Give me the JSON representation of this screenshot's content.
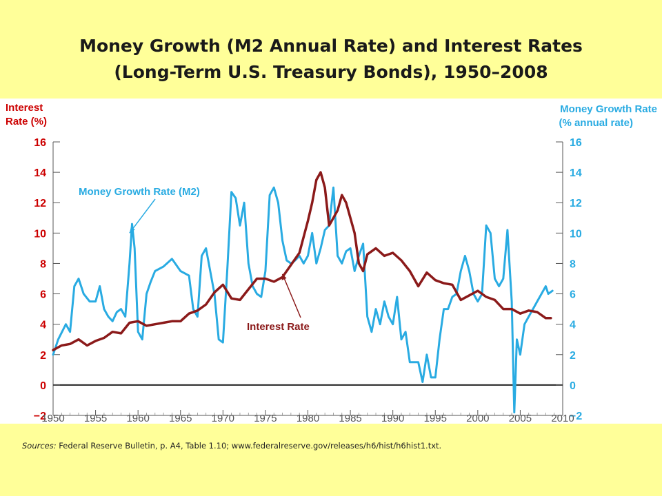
{
  "slide": {
    "title_line1": "Money Growth (M2 Annual Rate) and Interest Rates",
    "title_line2": "(Long-Term U.S. Treasury Bonds), 1950–2008",
    "sources_label": "Sources:",
    "sources_text": " Federal Reserve Bulletin, p. A4, Table 1.10; www.federalreserve.gov/releases/h6/hist/h6hist1.txt."
  },
  "colors": {
    "background": "#FFFF99",
    "plot_background": "#FFFFFF",
    "money_growth": "#29ABE2",
    "interest_rate": "#8B1A1A",
    "left_axis_text": "#CC0000",
    "right_axis_text": "#29ABE2"
  },
  "chart_data": {
    "type": "line",
    "title": "",
    "left_axis_label_line1": "Interest",
    "left_axis_label_line2": "Rate (%)",
    "right_axis_label_line1": "Money Growth Rate",
    "right_axis_label_line2": "(% annual rate)",
    "xlim": [
      1950,
      2010
    ],
    "ylim": [
      -2,
      16
    ],
    "x_ticks": [
      1950,
      1955,
      1960,
      1965,
      1970,
      1975,
      1980,
      1985,
      1990,
      1995,
      2000,
      2005,
      2010
    ],
    "y_ticks": [
      -2,
      0,
      2,
      4,
      6,
      8,
      10,
      12,
      14,
      16
    ],
    "y_tick_labels": [
      "−2",
      "0",
      "2",
      "4",
      "6",
      "8",
      "10",
      "12",
      "14",
      "16"
    ],
    "zero_line": true,
    "grid": false,
    "annotations": [
      {
        "text": "Money Growth Rate (M2)",
        "series": "money_growth",
        "points_to": [
          1959,
          10
        ]
      },
      {
        "text": "Interest Rate",
        "series": "interest_rate",
        "points_to": [
          1977,
          7.3
        ]
      }
    ],
    "series": [
      {
        "key": "money_growth",
        "x": [
          1950,
          1950.6,
          1951.5,
          1952,
          1952.5,
          1953,
          1953.6,
          1954.3,
          1955,
          1955.5,
          1956,
          1956.5,
          1957,
          1957.5,
          1958,
          1958.5,
          1959,
          1959.3,
          1959.6,
          1960,
          1960.5,
          1961,
          1961.5,
          1962,
          1963,
          1964,
          1965,
          1966,
          1966.5,
          1967,
          1967.5,
          1968,
          1969,
          1969.5,
          1970,
          1970.5,
          1971,
          1971.5,
          1972,
          1972.5,
          1973,
          1973.5,
          1974,
          1974.5,
          1975,
          1975.5,
          1976,
          1976.5,
          1977,
          1977.5,
          1978,
          1978.5,
          1979,
          1979.5,
          1980,
          1980.5,
          1981,
          1981.5,
          1982,
          1982.5,
          1983,
          1983.5,
          1984,
          1984.5,
          1985,
          1985.5,
          1986,
          1986.5,
          1987,
          1987.5,
          1988,
          1988.5,
          1989,
          1989.5,
          1990,
          1990.5,
          1991,
          1991.5,
          1992,
          1992.5,
          1993,
          1993.5,
          1994,
          1994.5,
          1995,
          1995.5,
          1996,
          1996.5,
          1997,
          1997.5,
          1998,
          1998.5,
          1999,
          1999.5,
          2000,
          2000.5,
          2001,
          2001.5,
          2002,
          2002.5,
          2003,
          2003.5,
          2004,
          2004.3,
          2004.6,
          2005,
          2005.5,
          2006,
          2006.5,
          2007,
          2007.5,
          2008,
          2008.3,
          2008.8
        ],
        "values": [
          2.0,
          3.0,
          4.0,
          3.5,
          6.5,
          7.0,
          6.0,
          5.5,
          5.5,
          6.5,
          5.0,
          4.5,
          4.2,
          4.8,
          5.0,
          4.5,
          8.0,
          10.6,
          9.0,
          3.5,
          3.0,
          6.0,
          6.8,
          7.5,
          7.8,
          8.3,
          7.5,
          7.2,
          5.0,
          4.5,
          8.5,
          9.0,
          6.0,
          3.0,
          2.8,
          7.5,
          12.7,
          12.3,
          10.5,
          12.0,
          8.0,
          6.5,
          6.0,
          5.8,
          7.5,
          12.5,
          13.0,
          12.0,
          9.5,
          8.2,
          8.0,
          8.2,
          8.5,
          8.0,
          8.5,
          10.0,
          8.0,
          9.0,
          10.2,
          10.5,
          13.0,
          8.5,
          8.0,
          8.8,
          9.0,
          7.5,
          8.5,
          9.3,
          4.5,
          3.5,
          5.0,
          4.0,
          5.5,
          4.5,
          4.0,
          5.8,
          3.0,
          3.5,
          1.5,
          1.5,
          1.5,
          0.2,
          2.0,
          0.5,
          0.5,
          3.0,
          5.0,
          5.0,
          5.8,
          6.0,
          7.5,
          8.5,
          7.5,
          6.0,
          5.5,
          6.0,
          10.5,
          10.0,
          7.0,
          6.5,
          7.0,
          10.2,
          5.5,
          -1.8,
          3.0,
          2.0,
          4.0,
          4.5,
          5.0,
          5.5,
          6.0,
          6.5,
          6.0,
          6.2
        ]
      },
      {
        "key": "interest_rate",
        "x": [
          1950,
          1951,
          1952,
          1953,
          1954,
          1955,
          1956,
          1957,
          1958,
          1959,
          1960,
          1961,
          1962,
          1963,
          1964,
          1965,
          1966,
          1967,
          1968,
          1969,
          1970,
          1971,
          1972,
          1973,
          1974,
          1975,
          1976,
          1977,
          1978,
          1979,
          1980,
          1980.5,
          1981,
          1981.5,
          1982,
          1982.5,
          1983,
          1983.5,
          1984,
          1984.5,
          1985,
          1985.5,
          1986,
          1986.5,
          1987,
          1988,
          1989,
          1990,
          1991,
          1992,
          1993,
          1994,
          1995,
          1996,
          1997,
          1998,
          1999,
          2000,
          2001,
          2002,
          2003,
          2004,
          2005,
          2006,
          2007,
          2008,
          2008.6
        ],
        "values": [
          2.3,
          2.6,
          2.7,
          3.0,
          2.6,
          2.9,
          3.1,
          3.5,
          3.4,
          4.1,
          4.2,
          3.9,
          4.0,
          4.1,
          4.2,
          4.2,
          4.7,
          4.9,
          5.3,
          6.1,
          6.6,
          5.7,
          5.6,
          6.3,
          7.0,
          7.0,
          6.8,
          7.1,
          7.9,
          8.7,
          10.8,
          12.0,
          13.5,
          14.0,
          13.0,
          10.5,
          11.0,
          11.5,
          12.5,
          12.0,
          11.0,
          10.0,
          8.0,
          7.5,
          8.6,
          9.0,
          8.5,
          8.7,
          8.2,
          7.5,
          6.5,
          7.4,
          6.9,
          6.7,
          6.6,
          5.6,
          5.9,
          6.2,
          5.8,
          5.6,
          5.0,
          5.0,
          4.7,
          4.9,
          4.8,
          4.4,
          4.4
        ]
      }
    ]
  }
}
